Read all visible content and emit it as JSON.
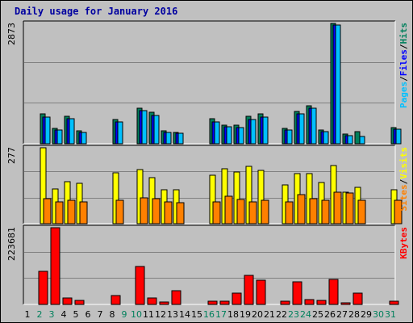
{
  "title": "Daily usage for January 2016",
  "colors": {
    "hits": "#00805c",
    "files": "#0000ff",
    "pages": "#00c0ff",
    "visits": "#ffff00",
    "sites": "#ff8000",
    "kbytes": "#ff0000",
    "background": "#c0c0c0",
    "weekend_day": "#00805c",
    "weekday_day": "#000000",
    "title": "#0000a0"
  },
  "chart_data": [
    {
      "type": "bar",
      "panel": "hits-files-pages",
      "max_label": "2873",
      "ylim": [
        0,
        2873
      ],
      "legend": [
        "Pages",
        "/",
        "Files",
        "/",
        "Hits"
      ],
      "series": [
        {
          "name": "Hits",
          "values": [
            0,
            705,
            369,
            656,
            301,
            0,
            0,
            587,
            0,
            845,
            749,
            301,
            272,
            0,
            0,
            592,
            445,
            440,
            647,
            708,
            0,
            359,
            767,
            912,
            333,
            2873,
            232,
            298,
            0,
            0,
            383
          ]
        },
        {
          "name": "Files",
          "values": [
            0,
            631,
            321,
            600,
            261,
            0,
            0,
            524,
            0,
            781,
            681,
            261,
            242,
            0,
            0,
            512,
            405,
            392,
            573,
            636,
            0,
            325,
            711,
            853,
            293,
            2834,
            201,
            0,
            0,
            0,
            350
          ]
        },
        {
          "name": "Pages",
          "values": [
            0,
            631,
            321,
            600,
            261,
            0,
            0,
            524,
            0,
            781,
            681,
            261,
            242,
            0,
            0,
            512,
            405,
            392,
            573,
            636,
            0,
            325,
            711,
            853,
            293,
            2834,
            201,
            178,
            0,
            0,
            350
          ]
        }
      ]
    },
    {
      "type": "bar",
      "panel": "visits-sites",
      "max_label": "277",
      "ylim": [
        0,
        277
      ],
      "legend": [
        "Sites",
        "/",
        "Visits"
      ],
      "series": [
        {
          "name": "Visits",
          "values": [
            0,
            277,
            128,
            153,
            146,
            0,
            0,
            186,
            0,
            196,
            168,
            125,
            125,
            0,
            0,
            176,
            199,
            188,
            209,
            194,
            0,
            140,
            183,
            183,
            150,
            213,
            115,
            133,
            0,
            0,
            125
          ]
        },
        {
          "name": "Sites",
          "values": [
            0,
            91,
            81,
            85,
            81,
            0,
            0,
            86,
            0,
            95,
            91,
            81,
            78,
            0,
            0,
            81,
            101,
            88,
            81,
            84,
            0,
            80,
            106,
            91,
            86,
            116,
            112,
            84,
            0,
            0,
            86
          ]
        }
      ]
    },
    {
      "type": "bar",
      "panel": "kbytes",
      "max_label": "223681",
      "ylim": [
        0,
        223681
      ],
      "legend": [
        "KBytes"
      ],
      "series": [
        {
          "name": "KBytes",
          "values": [
            0,
            96000,
            223681,
            19000,
            12000,
            0,
            0,
            27000,
            0,
            110000,
            18000,
            8000,
            40000,
            0,
            0,
            10000,
            10000,
            34000,
            84000,
            70000,
            0,
            10000,
            67000,
            15000,
            12000,
            74000,
            5000,
            33000,
            0,
            0,
            10000
          ]
        }
      ]
    }
  ],
  "days": [
    "1",
    "2",
    "3",
    "4",
    "5",
    "6",
    "7",
    "8",
    "9",
    "10",
    "11",
    "12",
    "13",
    "14",
    "15",
    "16",
    "17",
    "18",
    "19",
    "20",
    "21",
    "22",
    "23",
    "24",
    "25",
    "26",
    "27",
    "28",
    "29",
    "30",
    "31"
  ],
  "weekend_days": [
    "2",
    "3",
    "9",
    "10",
    "16",
    "17",
    "23",
    "24",
    "30",
    "31"
  ]
}
